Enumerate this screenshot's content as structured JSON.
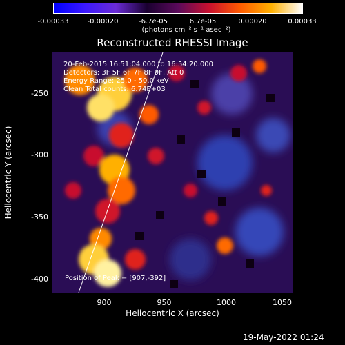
{
  "colorbar": {
    "ticks": [
      "-0.00033",
      "-0.00020",
      "-6.7e-05",
      "6.7e-05",
      "0.00020",
      "0.00033"
    ],
    "units": "(photons cm⁻² s⁻¹ asec⁻²)",
    "colors": [
      "#0000ff",
      "#3b18ff",
      "#6a2bd6",
      "#1a0030",
      "#5a0a5a",
      "#c8102f",
      "#ff5a00",
      "#ffb000",
      "#ffffff"
    ]
  },
  "title": "Reconstructed RHESSI Image",
  "annotations": {
    "time": "20-Feb-2015 16:51:04.000 to 16:54:20.000",
    "detectors": "Detectors: 3F 5F 6F 7F 8F 9F, Att 0",
    "energy": "Energy Range: 25.0 - 50.0 keV",
    "clean": "Clean    Total counts: 6.74E+03",
    "peak": "Position of Peak = [907,-392]"
  },
  "axes": {
    "xlabel": "Heliocentric X (arcsec)",
    "ylabel": "Heliocentric Y (arcsec)",
    "xticks": [
      "900",
      "950",
      "1000",
      "1050"
    ],
    "yticks": [
      "-250",
      "-300",
      "-350",
      "-400"
    ]
  },
  "timestamp": "19-May-2022 01:24"
}
